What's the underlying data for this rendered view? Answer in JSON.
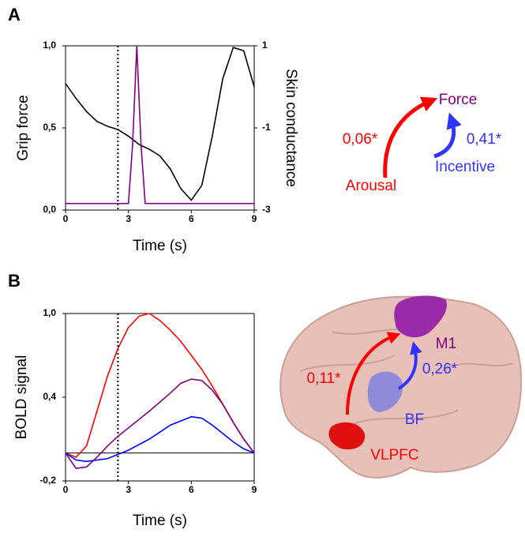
{
  "panel_labels": [
    "A",
    "B"
  ],
  "chart_data": [
    {
      "type": "line",
      "ylabel": "Grip force",
      "y2label": "Skin conductance",
      "xlabel": "Time (s)",
      "xlim": [
        0,
        9
      ],
      "xticks": [
        0,
        3,
        6,
        9
      ],
      "ylim": [
        0,
        1
      ],
      "yticks": [
        {
          "value": 0,
          "label": "0,0"
        },
        {
          "value": 0.5,
          "label": "0,5"
        },
        {
          "value": 1,
          "label": "1,0"
        }
      ],
      "y2lim": [
        -3,
        1
      ],
      "y2ticks": [
        1,
        -1,
        -3
      ],
      "vline": 2.5,
      "series": [
        {
          "color": "#000000",
          "x": [
            0,
            0.5,
            1,
            1.5,
            2,
            2.5,
            3,
            3.5,
            4,
            4.5,
            5,
            5.5,
            6,
            6.5,
            7,
            7.5,
            8,
            8.5,
            9
          ],
          "values": [
            0.77,
            0.68,
            0.6,
            0.54,
            0.51,
            0.49,
            0.45,
            0.4,
            0.37,
            0.33,
            0.25,
            0.13,
            0.06,
            0.15,
            0.45,
            0.8,
            0.99,
            0.97,
            0.75
          ]
        },
        {
          "color": "#800080",
          "x": [
            0,
            3,
            3.2,
            3.4,
            3.6,
            3.8,
            9
          ],
          "values": [
            0.04,
            0.04,
            0.4,
            1.0,
            0.4,
            0.04,
            0.04
          ]
        }
      ]
    },
    {
      "type": "line",
      "ylabel": "BOLD signal",
      "xlabel": "Time (s)",
      "xlim": [
        0,
        9
      ],
      "xticks": [
        0,
        3,
        6,
        9
      ],
      "ylim": [
        -0.2,
        1
      ],
      "yticks": [
        {
          "value": -0.2,
          "label": "-0,2"
        },
        {
          "value": 0.4,
          "label": "0,4"
        },
        {
          "value": 1,
          "label": "1,0"
        }
      ],
      "vline": 2.5,
      "hline": 0,
      "series": [
        {
          "color": "#ff0000",
          "x": [
            0,
            0.5,
            1,
            1.5,
            2,
            2.5,
            3,
            3.5,
            4,
            4.5,
            5,
            5.5,
            6,
            6.5,
            7,
            7.5,
            8,
            8.5,
            9
          ],
          "values": [
            0,
            -0.03,
            0.05,
            0.3,
            0.55,
            0.75,
            0.9,
            0.98,
            1.0,
            0.95,
            0.88,
            0.8,
            0.7,
            0.6,
            0.48,
            0.35,
            0.22,
            0.1,
            0
          ]
        },
        {
          "color": "#800080",
          "x": [
            0,
            0.5,
            1,
            1.5,
            2,
            2.5,
            3,
            4,
            5,
            5.5,
            6,
            6.5,
            7,
            7.5,
            8,
            8.5,
            9
          ],
          "values": [
            0,
            -0.11,
            -0.1,
            -0.03,
            0.05,
            0.12,
            0.18,
            0.3,
            0.43,
            0.5,
            0.53,
            0.52,
            0.45,
            0.35,
            0.22,
            0.1,
            0
          ]
        },
        {
          "color": "#0000ff",
          "x": [
            0,
            0.5,
            1,
            2,
            3,
            4,
            5,
            6,
            6.5,
            7,
            7.5,
            8,
            8.5,
            9
          ],
          "values": [
            0,
            -0.05,
            -0.06,
            -0.04,
            0.02,
            0.1,
            0.2,
            0.26,
            0.25,
            0.2,
            0.14,
            0.08,
            0.03,
            0
          ]
        }
      ]
    }
  ],
  "path_diagram": {
    "target": "Force",
    "arousal": "Arousal",
    "incentive": "Incentive",
    "arousal_coef": "0,06*",
    "incentive_coef": "0,41*"
  },
  "brain_diagram": {
    "m1": "M1",
    "bf": "BF",
    "vlpfc": "VLPFC",
    "bf_coef": "0,26*",
    "vlpfc_coef": "0,11*"
  }
}
